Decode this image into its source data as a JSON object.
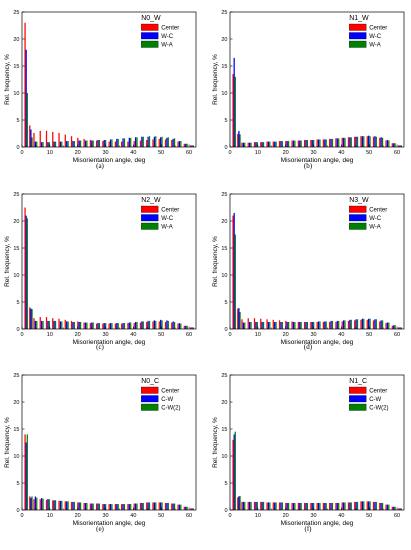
{
  "colors": {
    "Center": "#ff0000",
    "blue": "#0000ff",
    "green": "#008000"
  },
  "chart_data": [
    {
      "type": "bar",
      "panel_title": "N0_W",
      "caption": "(a)",
      "xlabel": "Misorientation angle, deg",
      "ylabel": "Rel. frequency, %",
      "xlim": [
        0,
        62.5
      ],
      "ylim": [
        0,
        25
      ],
      "xticks": [
        "0",
        "10",
        "20",
        "30",
        "40",
        "50",
        "60"
      ],
      "yticks": [
        "0",
        "5",
        "10",
        "15",
        "20",
        "25"
      ],
      "legend_position": "top-right",
      "series": [
        {
          "name": "Center",
          "color": "#ff0000",
          "peak": 23.0,
          "tail": [
            2.6,
            3.0,
            3.0,
            2.8,
            2.6,
            2.3,
            2.0,
            1.7,
            1.5,
            1.3,
            1.2,
            1.1,
            1.0,
            1.0,
            1.0,
            1.0,
            1.1,
            1.2,
            1.3,
            1.4,
            1.5,
            1.4,
            1.3,
            1.0,
            0.6,
            0.3
          ]
        },
        {
          "name": "W-C",
          "color": "#0000ff",
          "peak": 18.0,
          "tail": [
            1.0,
            0.9,
            0.9,
            1.0,
            1.0,
            1.1,
            1.1,
            1.2,
            1.2,
            1.2,
            1.3,
            1.3,
            1.4,
            1.5,
            1.6,
            1.7,
            1.8,
            1.9,
            1.9,
            1.9,
            1.8,
            1.7,
            1.5,
            1.1,
            0.6,
            0.3
          ]
        },
        {
          "name": "W-A",
          "color": "#008000",
          "peak": 10.0,
          "tail": [
            1.0,
            0.9,
            0.9,
            1.0,
            1.0,
            1.1,
            1.1,
            1.2,
            1.2,
            1.2,
            1.3,
            1.3,
            1.4,
            1.5,
            1.6,
            1.7,
            1.8,
            1.9,
            2.0,
            2.0,
            1.9,
            1.8,
            1.6,
            1.1,
            0.6,
            0.3
          ]
        }
      ]
    },
    {
      "type": "bar",
      "panel_title": "N1_W",
      "caption": "(b)",
      "xlabel": "Misorientation angle, deg",
      "ylabel": "Rel. frequency, %",
      "xlim": [
        0,
        62.5
      ],
      "ylim": [
        0,
        25
      ],
      "xticks": [
        "0",
        "10",
        "20",
        "30",
        "40",
        "50",
        "60"
      ],
      "yticks": [
        "0",
        "5",
        "10",
        "15",
        "20",
        "25"
      ],
      "legend_position": "top-right",
      "series": [
        {
          "name": "Center",
          "color": "#ff0000",
          "peak": 13.5,
          "tail": [
            0.8,
            0.8,
            0.9,
            0.9,
            1.0,
            1.0,
            1.1,
            1.1,
            1.2,
            1.2,
            1.3,
            1.3,
            1.4,
            1.4,
            1.5,
            1.6,
            1.7,
            1.8,
            1.9,
            2.0,
            2.0,
            1.9,
            1.7,
            1.2,
            0.7,
            0.3
          ]
        },
        {
          "name": "W-C",
          "color": "#0000ff",
          "peak": 16.5,
          "tail": [
            0.8,
            0.8,
            0.9,
            0.9,
            1.0,
            1.0,
            1.1,
            1.1,
            1.2,
            1.2,
            1.3,
            1.3,
            1.4,
            1.4,
            1.5,
            1.6,
            1.7,
            1.8,
            1.9,
            2.0,
            2.1,
            2.0,
            1.8,
            1.3,
            0.7,
            0.3
          ]
        },
        {
          "name": "W-A",
          "color": "#008000",
          "peak": 13.0,
          "tail": [
            0.8,
            0.8,
            0.9,
            0.9,
            1.0,
            1.0,
            1.1,
            1.1,
            1.2,
            1.2,
            1.3,
            1.3,
            1.4,
            1.4,
            1.5,
            1.6,
            1.7,
            1.8,
            1.9,
            2.0,
            2.0,
            1.9,
            1.7,
            1.2,
            0.7,
            0.3
          ]
        }
      ]
    },
    {
      "type": "bar",
      "panel_title": "N2_W",
      "caption": "(c)",
      "xlabel": "Misorientation angle, deg",
      "ylabel": "Rel. frequency, %",
      "xlim": [
        0,
        62.5
      ],
      "ylim": [
        0,
        25
      ],
      "xticks": [
        "0",
        "10",
        "20",
        "30",
        "40",
        "50",
        "60"
      ],
      "yticks": [
        "0",
        "5",
        "10",
        "15",
        "20",
        "25"
      ],
      "legend_position": "top-right",
      "series": [
        {
          "name": "Center",
          "color": "#ff0000",
          "peak": 22.5,
          "tail": [
            2.0,
            2.2,
            2.2,
            2.0,
            1.9,
            1.7,
            1.5,
            1.4,
            1.2,
            1.1,
            1.0,
            1.0,
            1.0,
            1.0,
            1.0,
            1.1,
            1.1,
            1.2,
            1.3,
            1.4,
            1.4,
            1.3,
            1.2,
            1.0,
            0.6,
            0.3
          ]
        },
        {
          "name": "W-C",
          "color": "#0000ff",
          "peak": 21.0,
          "tail": [
            1.5,
            1.5,
            1.5,
            1.5,
            1.4,
            1.4,
            1.3,
            1.3,
            1.2,
            1.2,
            1.1,
            1.1,
            1.1,
            1.1,
            1.1,
            1.2,
            1.3,
            1.4,
            1.5,
            1.6,
            1.7,
            1.6,
            1.4,
            1.1,
            0.6,
            0.3
          ]
        },
        {
          "name": "W-A",
          "color": "#008000",
          "peak": 20.5,
          "tail": [
            1.5,
            1.5,
            1.5,
            1.5,
            1.4,
            1.4,
            1.3,
            1.3,
            1.2,
            1.2,
            1.1,
            1.1,
            1.1,
            1.1,
            1.1,
            1.2,
            1.3,
            1.4,
            1.5,
            1.5,
            1.6,
            1.5,
            1.3,
            1.0,
            0.6,
            0.3
          ]
        }
      ]
    },
    {
      "type": "bar",
      "panel_title": "N3_W",
      "caption": "(d)",
      "xlabel": "Misorientation angle, deg",
      "ylabel": "Rel. frequency, %",
      "xlim": [
        0,
        62.5
      ],
      "ylim": [
        0,
        25
      ],
      "xticks": [
        "0",
        "10",
        "20",
        "30",
        "40",
        "50",
        "60"
      ],
      "yticks": [
        "0",
        "5",
        "10",
        "15",
        "20",
        "25"
      ],
      "legend_position": "top-right",
      "series": [
        {
          "name": "Center",
          "color": "#ff0000",
          "peak": 21.0,
          "tail": [
            1.8,
            2.0,
            2.0,
            1.9,
            1.8,
            1.7,
            1.6,
            1.5,
            1.4,
            1.3,
            1.3,
            1.3,
            1.3,
            1.3,
            1.3,
            1.3,
            1.4,
            1.5,
            1.6,
            1.7,
            1.7,
            1.6,
            1.4,
            1.1,
            0.6,
            0.3
          ]
        },
        {
          "name": "W-C",
          "color": "#0000ff",
          "peak": 21.5,
          "tail": [
            1.2,
            1.3,
            1.3,
            1.3,
            1.3,
            1.3,
            1.3,
            1.3,
            1.3,
            1.3,
            1.3,
            1.3,
            1.4,
            1.4,
            1.5,
            1.5,
            1.6,
            1.7,
            1.8,
            1.9,
            1.9,
            1.8,
            1.6,
            1.2,
            0.7,
            0.3
          ]
        },
        {
          "name": "W-A",
          "color": "#008000",
          "peak": 17.5,
          "tail": [
            1.2,
            1.3,
            1.3,
            1.3,
            1.3,
            1.3,
            1.3,
            1.3,
            1.3,
            1.3,
            1.3,
            1.3,
            1.4,
            1.4,
            1.5,
            1.5,
            1.6,
            1.7,
            1.8,
            1.9,
            1.9,
            1.8,
            1.6,
            1.2,
            0.7,
            0.3
          ]
        }
      ]
    },
    {
      "type": "bar",
      "panel_title": "N0_C",
      "caption": "(e)",
      "xlabel": "Misorientation angle, deg",
      "ylabel": "Rel. frequency, %",
      "xlim": [
        0,
        62.5
      ],
      "ylim": [
        0,
        25
      ],
      "xticks": [
        "0",
        "10",
        "20",
        "30",
        "40",
        "50",
        "60"
      ],
      "yticks": [
        "0",
        "5",
        "10",
        "15",
        "20",
        "25"
      ],
      "legend_position": "top-right",
      "series": [
        {
          "name": "Center",
          "color": "#ff0000",
          "peak": 14.0,
          "tail": [
            2.0,
            2.0,
            1.9,
            1.8,
            1.7,
            1.6,
            1.5,
            1.4,
            1.3,
            1.2,
            1.2,
            1.1,
            1.1,
            1.1,
            1.1,
            1.1,
            1.2,
            1.3,
            1.4,
            1.4,
            1.4,
            1.3,
            1.2,
            1.0,
            0.6,
            0.3
          ]
        },
        {
          "name": "C-W",
          "color": "#0000ff",
          "peak": 12.5,
          "tail": [
            2.5,
            2.2,
            2.0,
            1.8,
            1.7,
            1.6,
            1.5,
            1.4,
            1.3,
            1.2,
            1.2,
            1.1,
            1.1,
            1.1,
            1.1,
            1.1,
            1.2,
            1.3,
            1.4,
            1.4,
            1.4,
            1.3,
            1.2,
            1.0,
            0.6,
            0.3
          ]
        },
        {
          "name": "C-W(2)",
          "color": "#008000",
          "peak": 14.0,
          "tail": [
            2.3,
            2.1,
            2.0,
            1.8,
            1.7,
            1.6,
            1.5,
            1.4,
            1.3,
            1.2,
            1.2,
            1.1,
            1.1,
            1.1,
            1.1,
            1.1,
            1.2,
            1.3,
            1.4,
            1.4,
            1.4,
            1.3,
            1.2,
            1.0,
            0.6,
            0.3
          ]
        }
      ]
    },
    {
      "type": "bar",
      "panel_title": "N1_C",
      "caption": "(f)",
      "xlabel": "Misorientation angle, deg",
      "ylabel": "Rel. frequency, %",
      "xlim": [
        0,
        62.5
      ],
      "ylim": [
        0,
        25
      ],
      "xticks": [
        "0",
        "10",
        "20",
        "30",
        "40",
        "50",
        "60"
      ],
      "yticks": [
        "0",
        "5",
        "10",
        "15",
        "20",
        "25"
      ],
      "legend_position": "top-right",
      "series": [
        {
          "name": "Center",
          "color": "#ff0000",
          "peak": 13.0,
          "tail": [
            1.5,
            1.5,
            1.5,
            1.5,
            1.4,
            1.4,
            1.4,
            1.3,
            1.3,
            1.3,
            1.3,
            1.3,
            1.3,
            1.3,
            1.3,
            1.3,
            1.4,
            1.4,
            1.5,
            1.6,
            1.6,
            1.5,
            1.3,
            1.0,
            0.6,
            0.3
          ]
        },
        {
          "name": "C-W",
          "color": "#0000ff",
          "peak": 14.0,
          "tail": [
            1.5,
            1.5,
            1.5,
            1.5,
            1.4,
            1.4,
            1.4,
            1.3,
            1.3,
            1.3,
            1.3,
            1.3,
            1.3,
            1.3,
            1.3,
            1.3,
            1.4,
            1.4,
            1.5,
            1.6,
            1.6,
            1.5,
            1.3,
            1.0,
            0.6,
            0.3
          ]
        },
        {
          "name": "C-W(2)",
          "color": "#008000",
          "peak": 14.5,
          "tail": [
            1.5,
            1.5,
            1.5,
            1.5,
            1.4,
            1.4,
            1.4,
            1.3,
            1.3,
            1.3,
            1.3,
            1.3,
            1.3,
            1.3,
            1.3,
            1.3,
            1.4,
            1.4,
            1.5,
            1.6,
            1.6,
            1.5,
            1.3,
            1.0,
            0.6,
            0.3
          ]
        }
      ]
    }
  ]
}
